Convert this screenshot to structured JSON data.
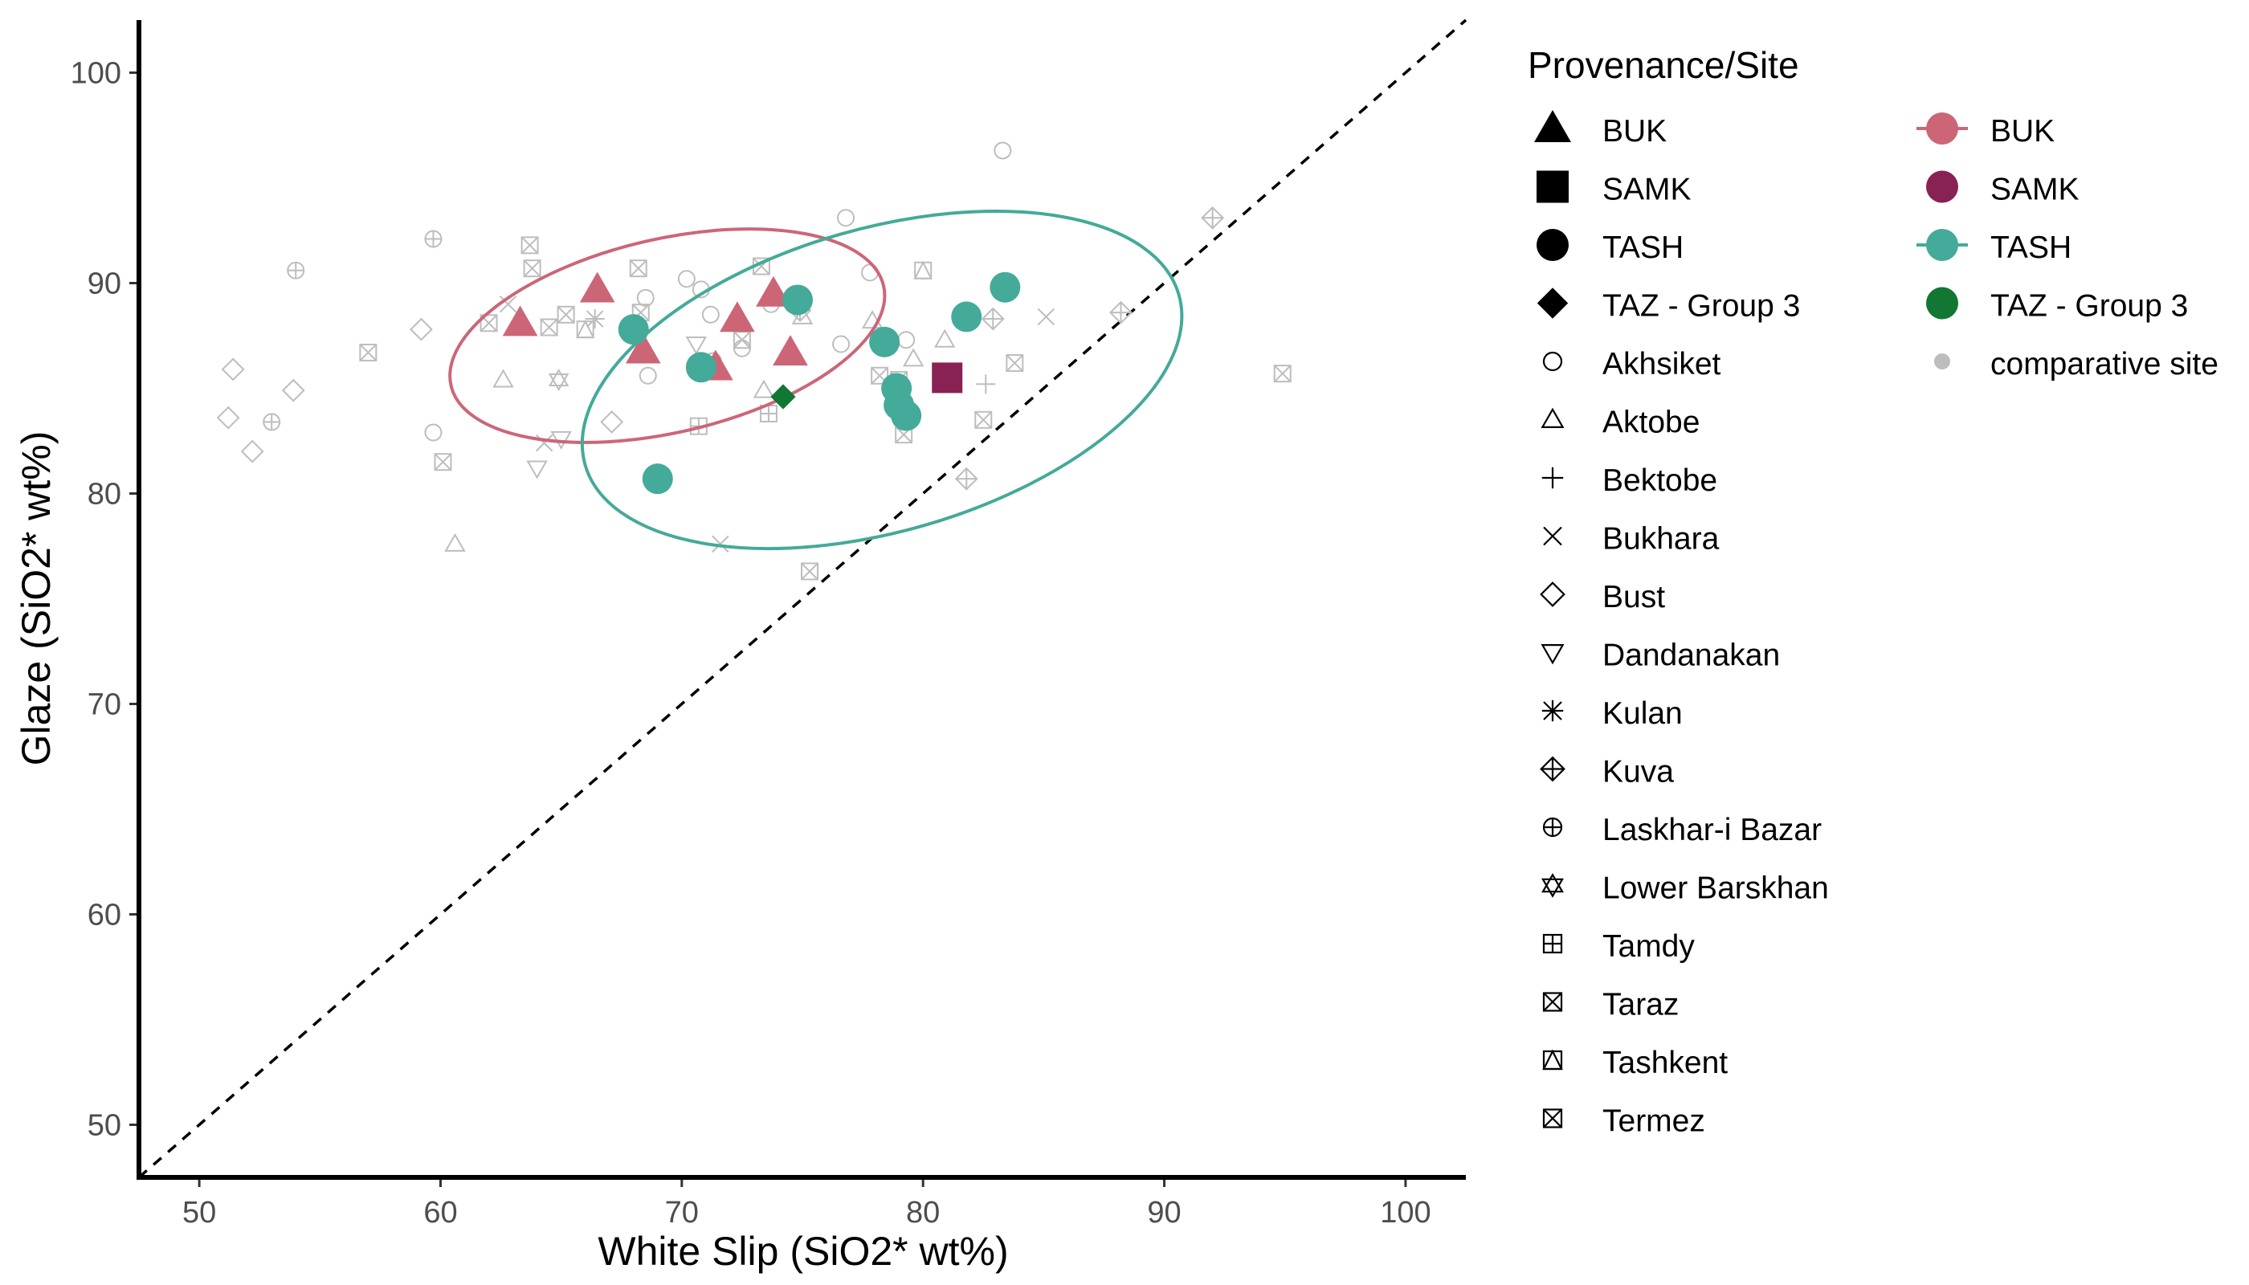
{
  "chart_data": {
    "type": "scatter",
    "xlabel": "White Slip (SiO2* wt%)",
    "ylabel": "Glaze (SiO2* wt%)",
    "xlim": [
      47.5,
      102.5
    ],
    "ylim": [
      47.5,
      102.5
    ],
    "x_ticks": [
      "50",
      "60",
      "70",
      "80",
      "90",
      "100"
    ],
    "y_ticks": [
      "50",
      "60",
      "70",
      "80",
      "90",
      "100"
    ],
    "x_tick_values": [
      50,
      60,
      70,
      80,
      90,
      100
    ],
    "y_tick_values": [
      50,
      60,
      70,
      80,
      90,
      100
    ],
    "reference_line": {
      "type": "dashed",
      "from": [
        47.5,
        47.5
      ],
      "to": [
        102.5,
        102.5
      ]
    },
    "colors": {
      "BUK": "#cc6677",
      "SAMK": "#882255",
      "TASH": "#44aa99",
      "TAZ - Group 3": "#117733",
      "comparative": "#bdbdbd"
    },
    "ellipses": [
      {
        "group": "BUK",
        "cx": 69.4,
        "cy": 87.5,
        "rx": 9.2,
        "ry": 4.6,
        "angle_deg": -13
      },
      {
        "group": "TASH",
        "cx": 78.3,
        "cy": 85.4,
        "rx": 12.8,
        "ry": 7.2,
        "angle_deg": -16
      }
    ],
    "series": [
      {
        "name": "BUK",
        "shape": "triangle",
        "group": "BUK",
        "x": [
          63.3,
          66.5,
          68.4,
          71.4,
          72.3,
          73.8,
          74.5
        ],
        "y": [
          88.1,
          89.7,
          86.8,
          86.0,
          88.3,
          89.5,
          86.7
        ]
      },
      {
        "name": "SAMK",
        "shape": "square",
        "group": "SAMK",
        "x": [
          81.0
        ],
        "y": [
          85.5
        ]
      },
      {
        "name": "TASH",
        "shape": "circle",
        "group": "TASH",
        "x": [
          68.0,
          69.0,
          70.8,
          74.8,
          78.4,
          78.9,
          79.0,
          79.3,
          81.8,
          83.4
        ],
        "y": [
          87.8,
          80.7,
          86.0,
          89.2,
          87.2,
          85.0,
          84.2,
          83.7,
          88.4,
          89.8
        ]
      },
      {
        "name": "TAZ - Group 3",
        "shape": "diamond",
        "group": "TAZ - Group 3",
        "x": [
          74.2
        ],
        "y": [
          84.6
        ]
      },
      {
        "name": "Akhsiket",
        "shape": "open-circle",
        "group": "comparative",
        "x": [
          59.7,
          68.5,
          68.6,
          70.2,
          70.8,
          71.2,
          71.3,
          72.5,
          73.7,
          76.6,
          76.8,
          77.8,
          79.3,
          83.3
        ],
        "y": [
          82.9,
          89.3,
          85.6,
          90.2,
          89.7,
          88.5,
          86.3,
          86.9,
          89.0,
          87.1,
          93.1,
          90.5,
          87.3,
          96.3
        ]
      },
      {
        "name": "Aktobe",
        "shape": "open-triangle",
        "group": "comparative",
        "x": [
          60.6,
          62.6,
          73.4,
          75.0,
          77.9,
          79.6,
          80.9
        ],
        "y": [
          77.6,
          85.4,
          84.9,
          88.4,
          88.2,
          86.4,
          87.3
        ]
      },
      {
        "name": "Bektobe",
        "shape": "plus",
        "group": "comparative",
        "x": [
          82.6
        ],
        "y": [
          85.2
        ]
      },
      {
        "name": "Bukhara",
        "shape": "cross",
        "group": "comparative",
        "x": [
          62.8,
          64.3,
          71.6,
          85.1
        ],
        "y": [
          89.0,
          82.4,
          77.6,
          88.4
        ]
      },
      {
        "name": "Bust",
        "shape": "open-diamond",
        "group": "comparative",
        "x": [
          51.2,
          51.4,
          52.2,
          53.9,
          59.2,
          67.1
        ],
        "y": [
          83.6,
          85.9,
          82.0,
          84.9,
          87.8,
          83.4
        ]
      },
      {
        "name": "Dandanakan",
        "shape": "open-triangle-down",
        "group": "comparative",
        "x": [
          64.0,
          65.0,
          70.6
        ],
        "y": [
          81.2,
          82.6,
          87.1
        ]
      },
      {
        "name": "Kulan",
        "shape": "asterisk",
        "group": "comparative",
        "x": [
          66.4
        ],
        "y": [
          88.3
        ]
      },
      {
        "name": "Kuva",
        "shape": "diamond-plus",
        "group": "comparative",
        "x": [
          74.9,
          81.8,
          82.9,
          88.2,
          92.0
        ],
        "y": [
          88.7,
          80.7,
          88.3,
          88.6,
          93.1
        ]
      },
      {
        "name": "Laskhar-i Bazar",
        "shape": "circle-plus",
        "group": "comparative",
        "x": [
          53.0,
          54.0,
          59.7
        ],
        "y": [
          83.4,
          90.6,
          92.1
        ]
      },
      {
        "name": "Lower Barskhan",
        "shape": "star-of-david",
        "group": "comparative",
        "x": [
          64.9
        ],
        "y": [
          85.4
        ]
      },
      {
        "name": "Tamdy",
        "shape": "square-plus",
        "group": "comparative",
        "x": [
          70.7,
          73.6
        ],
        "y": [
          83.2,
          83.8
        ]
      },
      {
        "name": "Taraz",
        "shape": "square-cross",
        "group": "comparative",
        "x": [
          63.7,
          68.2
        ],
        "y": [
          91.8,
          90.7
        ]
      },
      {
        "name": "Tashkent",
        "shape": "square-triangle",
        "group": "comparative",
        "x": [
          66.0,
          80.0
        ],
        "y": [
          87.8,
          90.6
        ]
      },
      {
        "name": "Termez",
        "shape": "square-cross",
        "group": "comparative",
        "x": [
          57.0,
          60.1,
          62.0,
          63.8,
          64.5,
          65.2,
          68.3,
          72.5,
          73.3,
          75.3,
          78.2,
          79.0,
          79.2,
          82.5,
          83.8,
          94.9
        ],
        "y": [
          86.7,
          81.5,
          88.1,
          90.7,
          87.9,
          88.5,
          88.6,
          87.3,
          90.8,
          76.3,
          85.6,
          85.4,
          82.8,
          83.5,
          86.2,
          85.7
        ]
      }
    ]
  },
  "legend": {
    "title": "Provenance/Site",
    "shape_items": [
      {
        "label": "BUK",
        "symbol": "triangle"
      },
      {
        "label": "SAMK",
        "symbol": "square"
      },
      {
        "label": "TASH",
        "symbol": "circle"
      },
      {
        "label": "TAZ - Group 3",
        "symbol": "diamond"
      },
      {
        "label": "Akhsiket",
        "symbol": "open-circle"
      },
      {
        "label": "Aktobe",
        "symbol": "open-triangle"
      },
      {
        "label": "Bektobe",
        "symbol": "plus"
      },
      {
        "label": "Bukhara",
        "symbol": "cross"
      },
      {
        "label": "Bust",
        "symbol": "open-diamond"
      },
      {
        "label": "Dandanakan",
        "symbol": "open-triangle-down"
      },
      {
        "label": "Kulan",
        "symbol": "asterisk"
      },
      {
        "label": "Kuva",
        "symbol": "diamond-plus"
      },
      {
        "label": "Laskhar-i Bazar",
        "symbol": "circle-plus"
      },
      {
        "label": "Lower Barskhan",
        "symbol": "star-of-david"
      },
      {
        "label": "Tamdy",
        "symbol": "square-plus"
      },
      {
        "label": "Taraz",
        "symbol": "square-cross"
      },
      {
        "label": "Tashkent",
        "symbol": "square-triangle"
      },
      {
        "label": "Termez",
        "symbol": "square-cross"
      }
    ],
    "color_items": [
      {
        "label": "BUK",
        "color": "#cc6677",
        "line": true
      },
      {
        "label": "SAMK",
        "color": "#882255",
        "line": false
      },
      {
        "label": "TASH",
        "color": "#44aa99",
        "line": true
      },
      {
        "label": "TAZ - Group 3",
        "color": "#117733",
        "line": false
      },
      {
        "label": "comparative site",
        "color": "#bdbdbd",
        "line": false,
        "small": true
      }
    ]
  }
}
